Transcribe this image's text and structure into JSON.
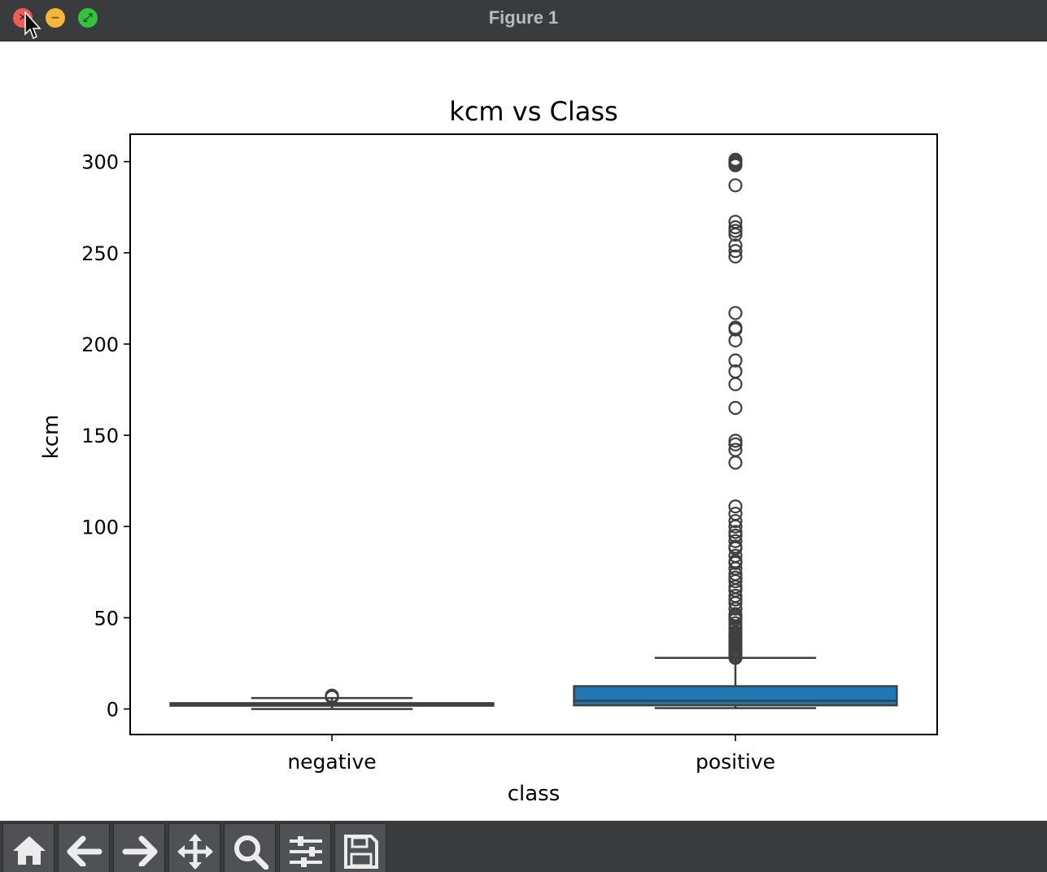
{
  "window": {
    "title": "Figure 1",
    "close_icon": "close-icon",
    "minimize_icon": "minimize-icon",
    "maximize_icon": "maximize-icon"
  },
  "toolbar": {
    "buttons": [
      {
        "name": "home-button",
        "icon": "home-icon"
      },
      {
        "name": "back-button",
        "icon": "arrow-left-icon"
      },
      {
        "name": "forward-button",
        "icon": "arrow-right-icon"
      },
      {
        "name": "pan-button",
        "icon": "move-icon"
      },
      {
        "name": "zoom-button",
        "icon": "magnifier-icon"
      },
      {
        "name": "configure-subplots-button",
        "icon": "sliders-icon"
      },
      {
        "name": "save-button",
        "icon": "floppy-disk-icon"
      }
    ]
  },
  "chart_data": {
    "type": "boxplot",
    "title": "kcm vs Class",
    "xlabel": "class",
    "ylabel": "kcm",
    "categories": [
      "negative",
      "positive"
    ],
    "ylim": [
      -14,
      315
    ],
    "yticks": [
      0,
      50,
      100,
      150,
      200,
      250,
      300
    ],
    "boxes": [
      {
        "category": "negative",
        "whisker_low": 0,
        "q1": 1.8,
        "median": 2.5,
        "q3": 3.2,
        "whisker_high": 6,
        "fliers": [
          6.5,
          7,
          7.3
        ],
        "fill": "#3b3b3b"
      },
      {
        "category": "positive",
        "whisker_low": 0.5,
        "q1": 2,
        "median": 4.5,
        "q3": 12.5,
        "whisker_high": 28,
        "fliers": [
          28,
          29,
          30,
          31,
          32,
          33,
          34,
          35,
          36,
          37,
          38,
          39,
          40,
          41,
          42,
          44,
          45,
          47,
          49,
          50,
          51,
          52,
          55,
          58,
          60,
          62,
          65,
          67,
          70,
          72,
          74,
          77,
          80,
          81,
          84,
          88,
          89,
          92,
          95,
          97,
          100,
          103,
          107,
          111,
          135,
          142,
          145,
          147,
          165,
          178,
          185,
          191,
          202,
          208,
          209,
          217,
          248,
          251,
          254,
          260,
          262,
          264,
          267,
          287,
          298,
          299,
          300,
          301
        ],
        "fill": "#1f77b4"
      }
    ],
    "edge_color": "#3f3f3f"
  }
}
